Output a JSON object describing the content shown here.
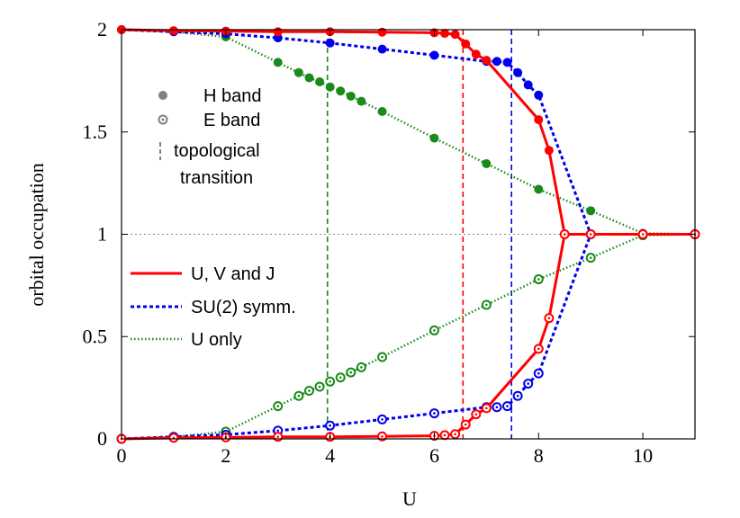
{
  "chart_data": {
    "type": "line",
    "xlabel": "U",
    "ylabel": "orbital occupation",
    "xlim": [
      0,
      11
    ],
    "ylim": [
      0,
      2
    ],
    "x_ticks": [
      "0",
      "2",
      "4",
      "6",
      "8",
      "10"
    ],
    "x_tick_values": [
      0,
      2,
      4,
      6,
      8,
      10
    ],
    "y_ticks": [
      "0",
      "0.5",
      "1",
      "1.5",
      "2"
    ],
    "y_tick_values": [
      0,
      0.5,
      1,
      1.5,
      2
    ],
    "reference_line": {
      "y": 1,
      "style": "dotted",
      "color": "#888888"
    },
    "band_legend": {
      "h_band": "H band",
      "e_band": "E band",
      "transition_line1": "topological",
      "transition_line2": "transition"
    },
    "transitions": [
      {
        "series": "U only",
        "x": 3.95,
        "color": "#1a8a1a"
      },
      {
        "series": "U, V and J",
        "x": 6.55,
        "color": "#ff0000"
      },
      {
        "series": "SU(2) symm.",
        "x": 7.48,
        "color": "#0000ee"
      }
    ],
    "series": [
      {
        "name": "U, V and J",
        "color": "#ff0000",
        "dash": "none",
        "width": 3,
        "h_band": {
          "x": [
            0,
            1,
            2,
            3,
            4,
            5,
            6,
            6.2,
            6.4,
            6.6,
            6.8,
            7,
            8,
            8.2,
            8.5,
            9,
            10,
            11
          ],
          "y": [
            2,
            1.995,
            1.993,
            1.99,
            1.99,
            1.988,
            1.985,
            1.982,
            1.977,
            1.93,
            1.88,
            1.85,
            1.56,
            1.41,
            1,
            1,
            1,
            1
          ]
        },
        "e_band": {
          "x": [
            0,
            1,
            2,
            3,
            4,
            5,
            6,
            6.2,
            6.4,
            6.6,
            6.8,
            7,
            8,
            8.2,
            8.5,
            9,
            10,
            11
          ],
          "y": [
            0,
            0.005,
            0.007,
            0.01,
            0.01,
            0.012,
            0.015,
            0.018,
            0.023,
            0.07,
            0.12,
            0.15,
            0.44,
            0.59,
            1,
            1,
            1,
            1
          ]
        }
      },
      {
        "name": "SU(2) symm.",
        "color": "#0000ee",
        "dash": "4,3",
        "width": 3,
        "h_band": {
          "x": [
            0,
            1,
            2,
            3,
            4,
            5,
            6,
            7,
            7.2,
            7.4,
            7.6,
            7.8,
            8,
            9,
            10,
            11
          ],
          "y": [
            2,
            1.99,
            1.98,
            1.96,
            1.935,
            1.905,
            1.875,
            1.845,
            1.845,
            1.84,
            1.79,
            1.73,
            1.68,
            1,
            1,
            1
          ]
        },
        "e_band": {
          "x": [
            0,
            1,
            2,
            3,
            4,
            5,
            6,
            7,
            7.2,
            7.4,
            7.6,
            7.8,
            8,
            9,
            10,
            11
          ],
          "y": [
            0,
            0.01,
            0.02,
            0.04,
            0.065,
            0.095,
            0.125,
            0.155,
            0.155,
            0.16,
            0.21,
            0.27,
            0.32,
            1,
            1,
            1
          ]
        }
      },
      {
        "name": "U only",
        "color": "#1a8a1a",
        "dash": "1.5,2.5",
        "width": 2.5,
        "h_band": {
          "x": [
            0,
            1,
            2,
            3,
            3.4,
            3.6,
            3.8,
            4,
            4.2,
            4.4,
            4.6,
            5,
            6,
            7,
            8,
            9,
            10,
            11
          ],
          "y": [
            2,
            1.99,
            1.965,
            1.84,
            1.79,
            1.765,
            1.745,
            1.72,
            1.7,
            1.675,
            1.65,
            1.6,
            1.47,
            1.345,
            1.22,
            1.115,
            1.005,
            1
          ]
        },
        "e_band": {
          "x": [
            0,
            1,
            2,
            3,
            3.4,
            3.6,
            3.8,
            4,
            4.2,
            4.4,
            4.6,
            5,
            6,
            7,
            8,
            9,
            10,
            11
          ],
          "y": [
            0,
            0.01,
            0.035,
            0.16,
            0.21,
            0.235,
            0.255,
            0.28,
            0.3,
            0.325,
            0.35,
            0.4,
            0.53,
            0.655,
            0.78,
            0.885,
            0.995,
            1
          ]
        }
      }
    ]
  }
}
